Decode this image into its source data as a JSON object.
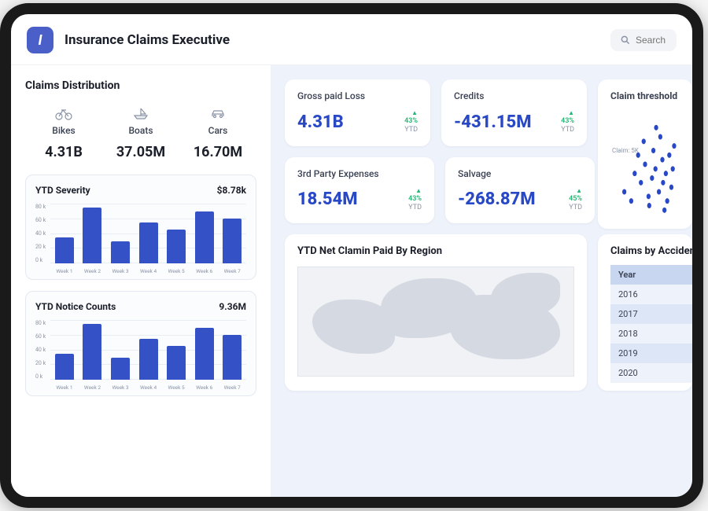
{
  "header": {
    "logo_letter": "I",
    "title": "Insurance Claims Executive",
    "search_placeholder": "Search"
  },
  "colors": {
    "brand": "#4a5fc7",
    "bar": "#3451c6",
    "kpi_value": "#2948c6",
    "positive": "#23b574",
    "scatter": "#2948c6",
    "card_bg": "#ffffff",
    "page_bg": "#eef2fb",
    "grid": "#e8ecf3",
    "muted_text": "#8a94a6",
    "text": "#1b1f2a"
  },
  "claims_distribution": {
    "title": "Claims Distribution",
    "items": [
      {
        "label": "Bikes",
        "value": "4.31B",
        "icon": "bike-icon"
      },
      {
        "label": "Boats",
        "value": "37.05M",
        "icon": "boat-icon"
      },
      {
        "label": "Cars",
        "value": "16.70M",
        "icon": "car-icon"
      }
    ]
  },
  "ytd_severity": {
    "title": "YTD Severity",
    "value": "$8.78k",
    "type": "bar",
    "ylim": [
      0,
      80
    ],
    "ytick_step": 20,
    "y_tick_labels": [
      "80 k",
      "60 k",
      "40 k",
      "20 k",
      "0 k"
    ],
    "x_labels": [
      "Week 1",
      "Week 2",
      "Week 3",
      "Week 4",
      "Week 5",
      "Week 6",
      "Week 7"
    ],
    "values": [
      35,
      75,
      30,
      55,
      45,
      70,
      60
    ],
    "bar_color": "#3451c6",
    "grid_color": "#e8ecf3",
    "bar_width": 0.7
  },
  "ytd_notice": {
    "title": "YTD Notice Counts",
    "value": "9.36M",
    "type": "bar",
    "ylim": [
      0,
      80
    ],
    "ytick_step": 20,
    "y_tick_labels": [
      "80 k",
      "60 k",
      "40 k",
      "20 k",
      "0 k"
    ],
    "x_labels": [
      "Week 1",
      "Week 2",
      "Week 3",
      "Week 4",
      "Week 5",
      "Week 6",
      "Week 7"
    ],
    "values": [
      35,
      75,
      30,
      55,
      45,
      70,
      60
    ],
    "bar_color": "#3451c6",
    "grid_color": "#e8ecf3",
    "bar_width": 0.7
  },
  "kpis": {
    "row1": [
      {
        "label": "Gross paid Loss",
        "value": "4.31B",
        "delta": "43%",
        "sub": "YTD"
      },
      {
        "label": "Credits",
        "value": "-431.15M",
        "delta": "43%",
        "sub": "YTD"
      }
    ],
    "row2": [
      {
        "label": "3rd Party Expenses",
        "value": "18.54M",
        "delta": "43%",
        "sub": "YTD"
      },
      {
        "label": "Salvage",
        "value": "-268.87M",
        "delta": "45%",
        "sub": "YTD"
      }
    ]
  },
  "threshold": {
    "title": "Claim threshold",
    "annotation": "Claim: 5K",
    "type": "scatter",
    "point_color": "#2948c6",
    "point_radius": 3,
    "points": [
      [
        20,
        30
      ],
      [
        30,
        20
      ],
      [
        35,
        50
      ],
      [
        44,
        40
      ],
      [
        50,
        60
      ],
      [
        55,
        25
      ],
      [
        60,
        45
      ],
      [
        62,
        75
      ],
      [
        65,
        55
      ],
      [
        70,
        30
      ],
      [
        72,
        90
      ],
      [
        75,
        65
      ],
      [
        76,
        40
      ],
      [
        80,
        50
      ],
      [
        82,
        20
      ],
      [
        85,
        70
      ],
      [
        88,
        35
      ],
      [
        90,
        55
      ],
      [
        92,
        80
      ],
      [
        40,
        70
      ],
      [
        48,
        85
      ],
      [
        56,
        15
      ],
      [
        66,
        100
      ],
      [
        78,
        10
      ]
    ]
  },
  "map_card": {
    "title": "YTD Net Clamin Paid By Region"
  },
  "accident_table": {
    "title": "Claims by Accident",
    "header": "Year",
    "rows": [
      "2016",
      "2017",
      "2018",
      "2019",
      "2020"
    ]
  }
}
